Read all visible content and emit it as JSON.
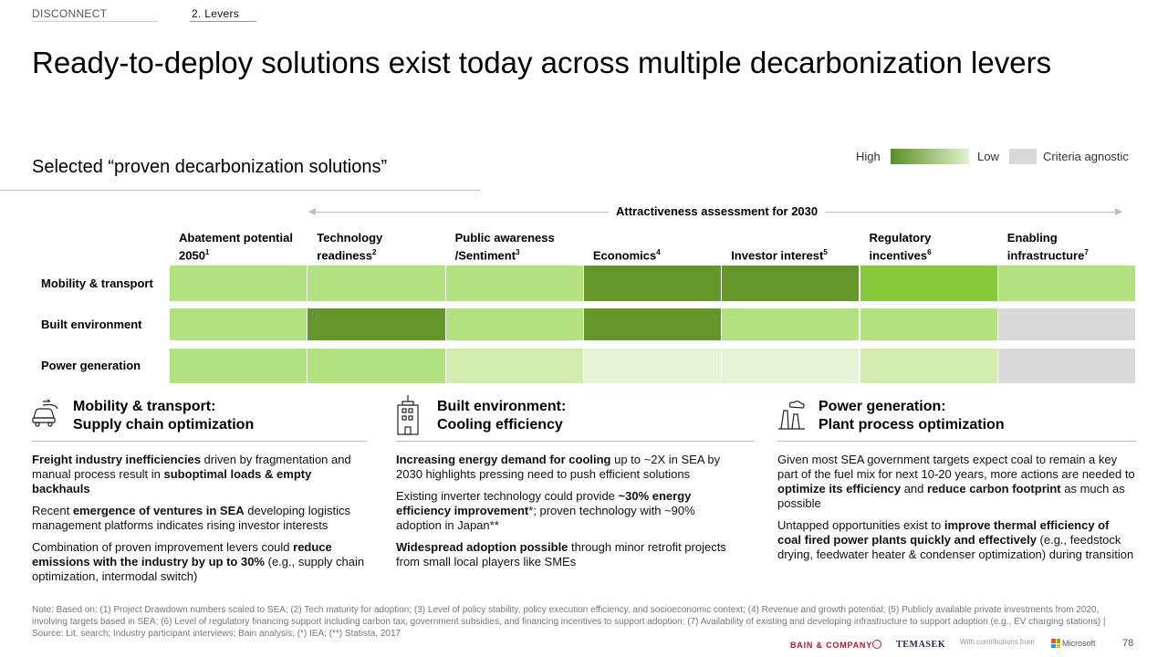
{
  "header": {
    "tab1": "DISCONNECT",
    "tab2": "2. Levers"
  },
  "title": "Ready-to-deploy solutions exist today across multiple decarbonization levers",
  "subtitle": "Selected “proven decarbonization solutions”",
  "legend": {
    "high": "High",
    "low": "Low",
    "agnostic": "Criteria agnostic"
  },
  "assessment_label": "Attractiveness assessment for 2030",
  "matrix": {
    "columns": [
      {
        "label": "Abatement potential 2050",
        "sup": "1"
      },
      {
        "label": "Technology readiness",
        "sup": "2"
      },
      {
        "label": "Public awareness /Sentiment",
        "sup": "3"
      },
      {
        "label": "Economics",
        "sup": "4"
      },
      {
        "label": "Investor interest",
        "sup": "5"
      },
      {
        "label": "Regulatory incentives",
        "sup": "6"
      },
      {
        "label": "Enabling infrastructure",
        "sup": "7"
      }
    ],
    "rows": [
      {
        "label": "Mobility & transport",
        "levels": [
          2,
          2,
          2,
          4,
          4,
          3,
          2
        ]
      },
      {
        "label": "Built environment",
        "levels": [
          2,
          4,
          2,
          4,
          2,
          2,
          "na"
        ]
      },
      {
        "label": "Power generation",
        "levels": [
          2,
          2,
          1,
          0,
          0,
          1,
          "na"
        ]
      }
    ],
    "level_colors": {
      "0": "#e6f5d5",
      "1": "#d2ecb0",
      "2": "#b5e280",
      "3": "#87c93a",
      "4": "#64962b",
      "na": "#d9d9d9"
    }
  },
  "sections": [
    {
      "icon": "car-icon",
      "head1": "Mobility & transport:",
      "head2": "Supply chain optimization",
      "paragraphs": [
        [
          {
            "t": "Freight industry inefficiencies",
            "b": true
          },
          {
            "t": " driven by fragmentation and manual process result in "
          },
          {
            "t": "suboptimal loads & empty backhauls",
            "b": true
          }
        ],
        [
          {
            "t": "Recent "
          },
          {
            "t": "emergence of ventures in SEA",
            "b": true
          },
          {
            "t": " developing logistics management platforms indicates rising investor interests"
          }
        ],
        [
          {
            "t": "Combination of proven improvement levers could "
          },
          {
            "t": "reduce emissions with the industry by up to 30%",
            "b": true
          },
          {
            "t": " (e.g., supply chain optimization, intermodal switch)"
          }
        ]
      ]
    },
    {
      "icon": "building-icon",
      "head1": "Built environment:",
      "head2": "Cooling efficiency",
      "paragraphs": [
        [
          {
            "t": "Increasing energy demand for cooling",
            "b": true
          },
          {
            "t": " up to ~2X in SEA by 2030 highlights pressing need to push efficient solutions"
          }
        ],
        [
          {
            "t": "Existing inverter technology could provide "
          },
          {
            "t": "~30% energy efficiency improvement",
            "b": true
          },
          {
            "t": "*; proven technology with ~90% adoption in Japan**"
          }
        ],
        [
          {
            "t": "Widespread adoption possible",
            "b": true
          },
          {
            "t": " through minor retrofit projects from small local players like SMEs"
          }
        ]
      ]
    },
    {
      "icon": "factory-icon",
      "head1": "Power generation:",
      "head2": "Plant process optimization",
      "paragraphs": [
        [
          {
            "t": "Given most SEA government targets expect coal to remain a key part of the fuel mix for next 10-20 years, more actions are needed to "
          },
          {
            "t": "optimize its efficiency",
            "b": true
          },
          {
            "t": " and "
          },
          {
            "t": "reduce carbon footprint",
            "b": true
          },
          {
            "t": " as much as possible"
          }
        ],
        [
          {
            "t": "Untapped opportunities exist to "
          },
          {
            "t": "improve thermal efficiency of coal fired power plants quickly and effectively",
            "b": true
          },
          {
            "t": " (e.g., feedstock drying, feedwater heater & condenser optimization) during transition"
          }
        ]
      ]
    }
  ],
  "note": "Note: Based on: (1) Project Drawdown numbers scaled to SEA; (2) Tech maturity for adoption; (3) Level of policy stability, policy execution efficiency, and socioeconomic context; (4) Revenue and growth potential; (5) Publicly available private investments from 2020, involving targets based in SEA; (6) Level of regulatory financing support including carbon tax, government subsidies, and financing incentives to support adoption; (7) Availability of existing and developing infrastructure to support adoption (e.g., EV charging stations) | Source: Lit. search; Industry participant interviews; Bain analysis; (*) IEA; (**) Statista, 2017",
  "footer": {
    "bain": "BAIN & COMPANY",
    "temasek": "TEMASEK",
    "contrib": "With contributions from",
    "microsoft": "Microsoft",
    "page": "78"
  }
}
